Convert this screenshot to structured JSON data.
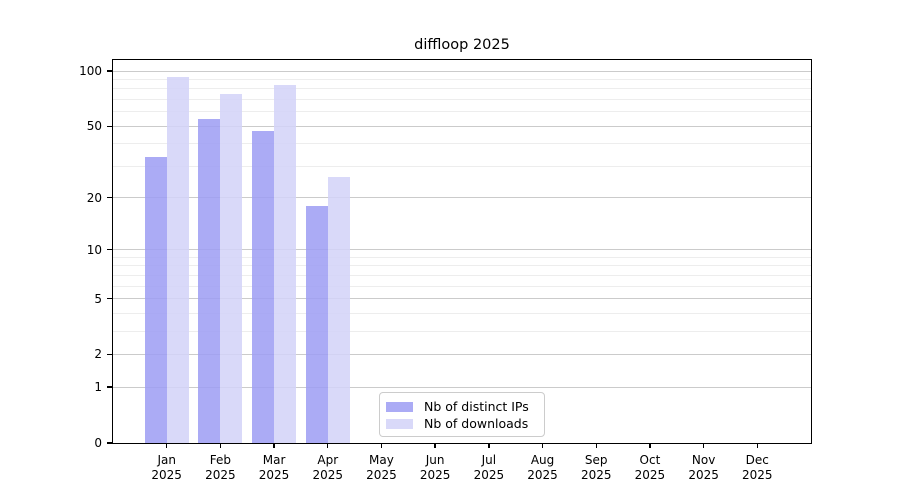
{
  "chart_data": {
    "type": "bar",
    "title": "diffloop 2025",
    "categories": [
      "Jan",
      "Feb",
      "Mar",
      "Apr",
      "May",
      "Jun",
      "Jul",
      "Aug",
      "Sep",
      "Oct",
      "Nov",
      "Dec"
    ],
    "category_year": "2025",
    "series": [
      {
        "name": "Nb of distinct IPs",
        "color": "#9f9ff4",
        "values": [
          34,
          55,
          47,
          18,
          0,
          0,
          0,
          0,
          0,
          0,
          0,
          0
        ]
      },
      {
        "name": "Nb of downloads",
        "color": "#d3d3f8",
        "values": [
          93,
          75,
          84,
          26,
          0,
          0,
          0,
          0,
          0,
          0,
          0,
          0
        ]
      }
    ],
    "yscale": "log1p",
    "ylim": [
      0,
      115
    ],
    "yticks": [
      100,
      50,
      20,
      10,
      5,
      2,
      1,
      0
    ],
    "minor_yticks": [
      3,
      4,
      6,
      7,
      8,
      9,
      30,
      40,
      60,
      70,
      80,
      90
    ],
    "grid": true,
    "legend_position": "lower center"
  },
  "colors": {
    "major_grid": "#cbcbcb",
    "minor_grid": "#ededed",
    "spine": "#000000"
  }
}
